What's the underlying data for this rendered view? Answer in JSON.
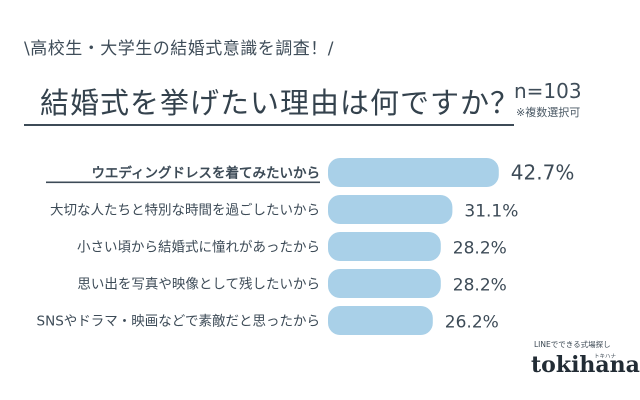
{
  "header": {
    "subtitle": "\\高校生・大学生の結婚式意識を調査！/",
    "title": "結婚式を挙げたい理由は何ですか？",
    "sample_size": "n=103",
    "note": "※複数選択可"
  },
  "chart_data": {
    "type": "bar",
    "orientation": "horizontal",
    "categories": [
      "ウエディングドレスを着てみたいから",
      "大切な人たちと特別な時間を過ごしたいから",
      "小さい頃から結婚式に憧れがあったから",
      "思い出を写真や映像として残したいから",
      "SNSやドラマ・映画などで素敵だと思ったから"
    ],
    "values": [
      42.7,
      31.1,
      28.2,
      28.2,
      26.2
    ],
    "value_labels": [
      "42.7%",
      "31.1%",
      "28.2%",
      "28.2%",
      "26.2%"
    ],
    "unit": "%",
    "highlight_index": 0,
    "colors": {
      "bar": "#a9d0e8",
      "text": "#3d4b57"
    }
  },
  "brand": {
    "tagline": "LINEでできる式場探し",
    "ruby": "トキハナ",
    "name": "tokihana"
  }
}
